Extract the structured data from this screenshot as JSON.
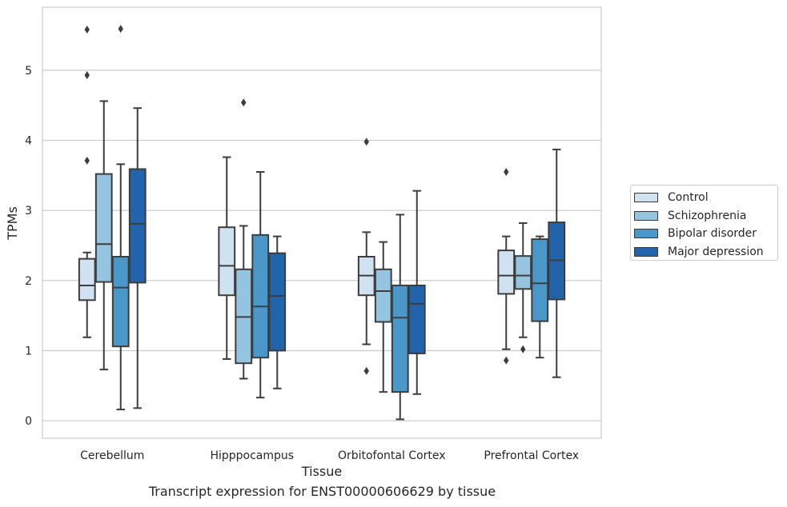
{
  "chart_data": {
    "type": "box",
    "xlabel": "Tissue",
    "ylabel": "TPMs",
    "ylim": [
      -0.25,
      5.9
    ],
    "yticks": [
      0,
      1,
      2,
      3,
      4,
      5
    ],
    "grid": "horizontal",
    "legend_position": "right",
    "categories": [
      "Cerebellum",
      "Hipppocampus",
      "Orbitofontal Cortex",
      "Prefrontal Cortex"
    ],
    "series": [
      {
        "name": "Control",
        "color": "#d0e1f2",
        "boxes": [
          {
            "whislo": 1.19,
            "q1": 1.72,
            "med": 1.93,
            "q3": 2.31,
            "whishi": 2.4,
            "fliers": [
              3.71,
              4.93,
              5.58
            ]
          },
          {
            "whislo": 0.88,
            "q1": 1.79,
            "med": 2.21,
            "q3": 2.76,
            "whishi": 3.76,
            "fliers": []
          },
          {
            "whislo": 1.09,
            "q1": 1.79,
            "med": 2.07,
            "q3": 2.34,
            "whishi": 2.69,
            "fliers": [
              0.71,
              3.98
            ]
          },
          {
            "whislo": 1.02,
            "q1": 1.81,
            "med": 2.07,
            "q3": 2.43,
            "whishi": 2.63,
            "fliers": [
              0.86,
              3.55
            ]
          }
        ]
      },
      {
        "name": "Schizophrenia",
        "color": "#94c4df",
        "boxes": [
          {
            "whislo": 0.73,
            "q1": 1.98,
            "med": 2.52,
            "q3": 3.52,
            "whishi": 4.56,
            "fliers": []
          },
          {
            "whislo": 0.6,
            "q1": 0.82,
            "med": 1.48,
            "q3": 2.16,
            "whishi": 2.78,
            "fliers": [
              4.54
            ]
          },
          {
            "whislo": 0.41,
            "q1": 1.41,
            "med": 1.85,
            "q3": 2.16,
            "whishi": 2.55,
            "fliers": []
          },
          {
            "whislo": 1.19,
            "q1": 1.88,
            "med": 2.07,
            "q3": 2.35,
            "whishi": 2.82,
            "fliers": [
              1.02
            ]
          }
        ]
      },
      {
        "name": "Bipolar disorder",
        "color": "#4a98c9",
        "boxes": [
          {
            "whislo": 0.16,
            "q1": 1.06,
            "med": 1.9,
            "q3": 2.34,
            "whishi": 3.66,
            "fliers": [
              5.59
            ]
          },
          {
            "whislo": 0.33,
            "q1": 0.9,
            "med": 1.63,
            "q3": 2.65,
            "whishi": 3.55,
            "fliers": []
          },
          {
            "whislo": 0.02,
            "q1": 0.41,
            "med": 1.47,
            "q3": 1.93,
            "whishi": 2.94,
            "fliers": []
          },
          {
            "whislo": 0.9,
            "q1": 1.42,
            "med": 1.96,
            "q3": 2.59,
            "whishi": 2.63,
            "fliers": []
          }
        ]
      },
      {
        "name": "Major depression",
        "color": "#2164ab",
        "boxes": [
          {
            "whislo": 0.18,
            "q1": 1.97,
            "med": 2.81,
            "q3": 3.59,
            "whishi": 4.46,
            "fliers": []
          },
          {
            "whislo": 0.46,
            "q1": 1.0,
            "med": 1.78,
            "q3": 2.39,
            "whishi": 2.63,
            "fliers": []
          },
          {
            "whislo": 0.38,
            "q1": 0.96,
            "med": 1.67,
            "q3": 1.93,
            "whishi": 3.28,
            "fliers": []
          },
          {
            "whislo": 0.62,
            "q1": 1.73,
            "med": 2.29,
            "q3": 2.83,
            "whishi": 3.87,
            "fliers": []
          }
        ]
      }
    ],
    "caption": "Transcript expression for ENST00000606629 by tissue"
  }
}
